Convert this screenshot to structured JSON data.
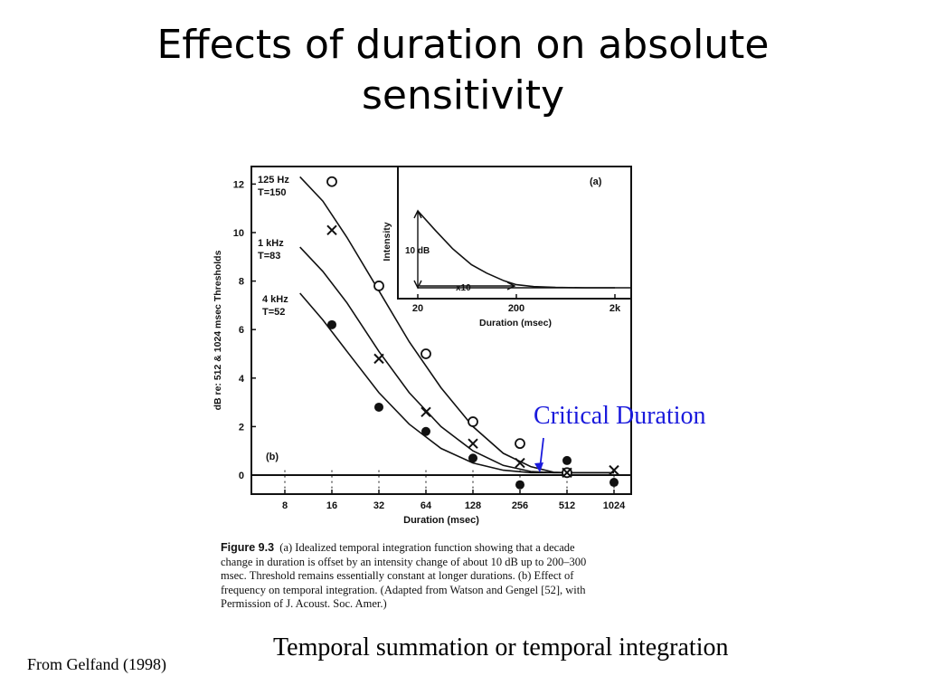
{
  "slide": {
    "title_line1": "Effects of duration on absolute",
    "title_line2": "sensitivity",
    "annotation": "Critical Duration",
    "subcaption": "Temporal summation or temporal integration",
    "source": "From Gelfand (1998)"
  },
  "figure": {
    "caption_label": "Figure 9.3",
    "caption_lines": [
      "(a) Idealized temporal integration function showing that a decade",
      "change in duration is offset by an intensity change of about 10 dB up to 200–300",
      "msec. Threshold remains essentially constant at longer durations. (b) Effect of",
      "frequency on temporal integration. (Adapted from Watson and Gengel [52], with",
      "Permission of J. Acoust. Soc. Amer.)"
    ]
  },
  "colors": {
    "annotation": "#1a1adc",
    "ink": "#111111"
  },
  "chart_data": [
    {
      "type": "scatter",
      "panel_label": "(b)",
      "xlabel": "Duration (msec)",
      "ylabel": "dB re: 512 & 1024 msec Thresholds",
      "x_scale": "log2",
      "xticks": [
        8,
        16,
        32,
        64,
        128,
        256,
        512,
        1024
      ],
      "xtick_labels": [
        "8",
        "16",
        "32",
        "64",
        "128",
        "256",
        "512",
        "1024"
      ],
      "yticks": [
        0,
        2,
        4,
        6,
        8,
        10,
        12
      ],
      "ytick_labels": [
        "0",
        "2",
        "4",
        "6",
        "8",
        "10",
        "12"
      ],
      "ylim": [
        -1,
        12.5
      ],
      "series": [
        {
          "name": "125 Hz",
          "label_lines": [
            "125 Hz",
            "T=150"
          ],
          "marker": "open-circle",
          "x": [
            16,
            32,
            64,
            128,
            256,
            512
          ],
          "y": [
            12.1,
            7.8,
            5.0,
            2.2,
            1.3,
            0.1
          ],
          "fit": {
            "x": [
              10,
              14,
              20,
              32,
              50,
              80,
              128,
              200,
              300,
              420,
              512,
              1024
            ],
            "y": [
              12.3,
              11.3,
              9.8,
              7.6,
              5.5,
              3.6,
              2.0,
              0.9,
              0.35,
              0.12,
              0.1,
              0.1
            ]
          }
        },
        {
          "name": "1 kHz",
          "label_lines": [
            "1 kHz",
            "T=83"
          ],
          "marker": "x",
          "x": [
            16,
            32,
            64,
            128,
            256,
            512,
            1024
          ],
          "y": [
            10.1,
            4.8,
            2.6,
            1.3,
            0.5,
            0.1,
            0.2
          ],
          "fit": {
            "x": [
              10,
              14,
              20,
              32,
              50,
              80,
              128,
              200,
              300,
              420,
              512,
              1024
            ],
            "y": [
              9.4,
              8.4,
              7.1,
              5.1,
              3.4,
              2.0,
              1.0,
              0.4,
              0.15,
              0.1,
              0.1,
              0.1
            ]
          }
        },
        {
          "name": "4 kHz",
          "label_lines": [
            "4 kHz",
            "T=52"
          ],
          "marker": "filled-circle",
          "x": [
            16,
            32,
            64,
            128,
            256,
            512,
            1024
          ],
          "y": [
            6.2,
            2.8,
            1.8,
            0.7,
            -0.4,
            0.6,
            -0.3
          ],
          "fit": {
            "x": [
              10,
              14,
              20,
              32,
              50,
              80,
              128,
              200,
              300,
              512,
              1024
            ],
            "y": [
              7.5,
              6.4,
              5.1,
              3.4,
              2.1,
              1.1,
              0.5,
              0.2,
              0.1,
              0.1,
              0.1
            ]
          }
        }
      ],
      "inset": {
        "type": "line",
        "panel_label": "(a)",
        "xlabel": "Duration (msec)",
        "ylabel": "Intensity",
        "x_scale": "log10",
        "xticks": [
          20,
          200,
          2000
        ],
        "xtick_labels": [
          "20",
          "200",
          "2k"
        ],
        "annotations": [
          "10 dB",
          "x10"
        ],
        "curve": {
          "x": [
            20,
            30,
            45,
            70,
            100,
            150,
            200,
            300,
            500,
            1000,
            2000
          ],
          "y": [
            10,
            7.5,
            5.1,
            3.0,
            1.9,
            0.9,
            0.4,
            0.15,
            0.05,
            0.0,
            0.0
          ]
        }
      }
    }
  ]
}
